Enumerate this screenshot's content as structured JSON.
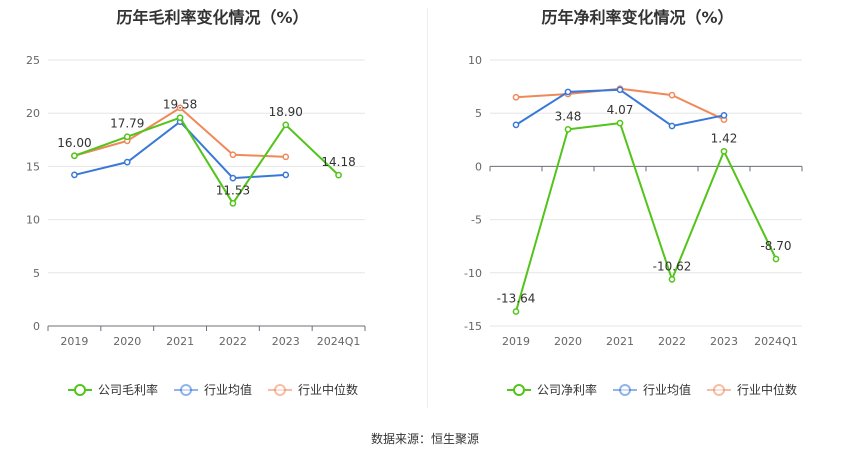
{
  "footer": {
    "source_label": "数据来源：",
    "source_value": "恒生聚源"
  },
  "chart_data": [
    {
      "type": "line",
      "title": "历年毛利率变化情况（%）",
      "categories": [
        "2019",
        "2020",
        "2021",
        "2022",
        "2023",
        "2024Q1"
      ],
      "ylim": [
        0,
        25
      ],
      "yticks": [
        0,
        5,
        10,
        15,
        20,
        25
      ],
      "grid": true,
      "legend_position": "bottom",
      "series": [
        {
          "name": "公司毛利率",
          "color": "#52c41a",
          "values": [
            16.0,
            17.79,
            19.58,
            11.53,
            18.9,
            14.18
          ],
          "labels": [
            "16.00",
            "17.79",
            "19.58",
            "11.53",
            "18.90",
            "14.18"
          ]
        },
        {
          "name": "行业均值",
          "color": "#3a78d8",
          "values": [
            14.2,
            15.4,
            19.2,
            13.9,
            14.2,
            null
          ]
        },
        {
          "name": "行业中位数",
          "color": "#f0895a",
          "values": [
            16.0,
            17.4,
            20.5,
            16.1,
            15.9,
            null
          ]
        }
      ]
    },
    {
      "type": "line",
      "title": "历年净利率变化情况（%）",
      "categories": [
        "2019",
        "2020",
        "2021",
        "2022",
        "2023",
        "2024Q1"
      ],
      "ylim": [
        -15,
        10
      ],
      "yticks": [
        -15,
        -10,
        -5,
        0,
        5,
        10
      ],
      "grid": true,
      "legend_position": "bottom",
      "series": [
        {
          "name": "公司净利率",
          "color": "#52c41a",
          "values": [
            -13.64,
            3.48,
            4.07,
            -10.62,
            1.42,
            -8.7
          ],
          "labels": [
            "-13.64",
            "3.48",
            "4.07",
            "-10.62",
            "1.42",
            "-8.70"
          ]
        },
        {
          "name": "行业均值",
          "color": "#3a78d8",
          "values": [
            3.9,
            7.0,
            7.2,
            3.8,
            4.8,
            null
          ]
        },
        {
          "name": "行业中位数",
          "color": "#f0895a",
          "values": [
            6.5,
            6.8,
            7.3,
            6.7,
            4.4,
            null
          ]
        }
      ]
    }
  ]
}
